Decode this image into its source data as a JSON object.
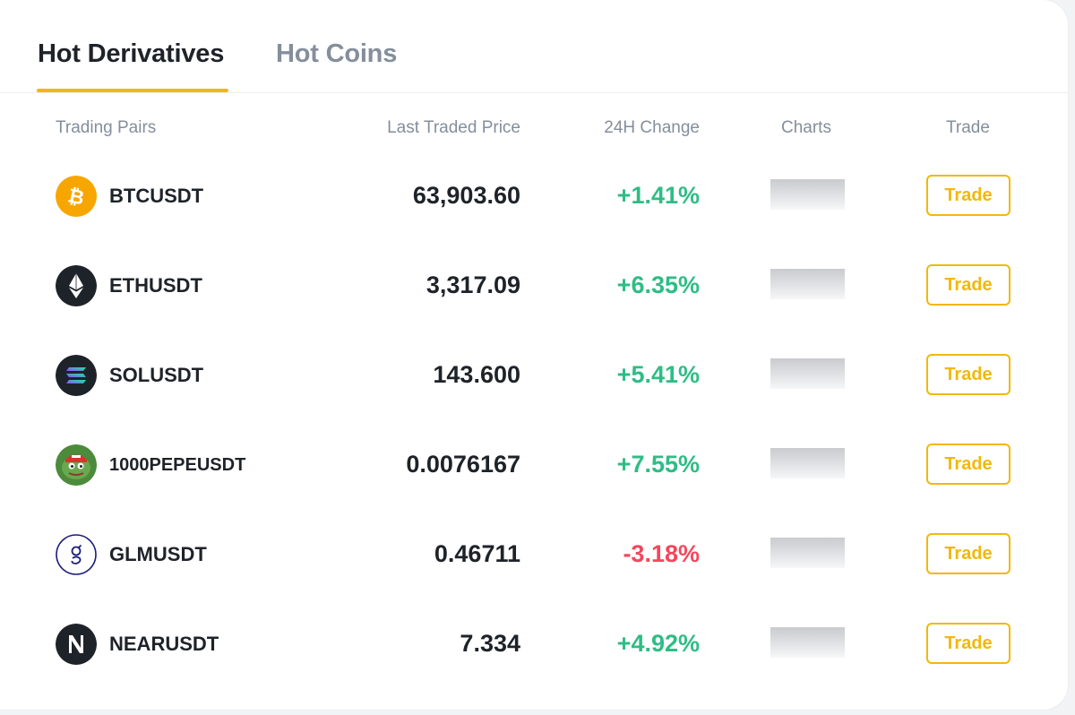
{
  "tabs": [
    {
      "label": "Hot Derivatives",
      "active": true
    },
    {
      "label": "Hot Coins",
      "active": false
    }
  ],
  "columns": {
    "pair": "Trading Pairs",
    "price": "Last Traded Price",
    "change": "24H Change",
    "charts": "Charts",
    "trade": "Trade"
  },
  "colors": {
    "accent": "#f0b90b",
    "positive": "#2ebd85",
    "negative": "#f6465d",
    "text_primary": "#1e2329",
    "text_secondary": "#848e9c"
  },
  "rows": [
    {
      "pair": "BTCUSDT",
      "icon": "bitcoin-icon",
      "price": "63,903.60",
      "change": "+1.41%",
      "direction": "up",
      "button": "Trade"
    },
    {
      "pair": "ETHUSDT",
      "icon": "ethereum-icon",
      "price": "3,317.09",
      "change": "+6.35%",
      "direction": "up",
      "button": "Trade"
    },
    {
      "pair": "SOLUSDT",
      "icon": "solana-icon",
      "price": "143.600",
      "change": "+5.41%",
      "direction": "up",
      "button": "Trade"
    },
    {
      "pair": "1000PEPEUSDT",
      "icon": "pepe-icon",
      "price": "0.0076167",
      "change": "+7.55%",
      "direction": "up",
      "button": "Trade"
    },
    {
      "pair": "GLMUSDT",
      "icon": "golem-icon",
      "price": "0.46711",
      "change": "-3.18%",
      "direction": "down",
      "button": "Trade"
    },
    {
      "pair": "NEARUSDT",
      "icon": "near-icon",
      "price": "7.334",
      "change": "+4.92%",
      "direction": "up",
      "button": "Trade"
    }
  ]
}
